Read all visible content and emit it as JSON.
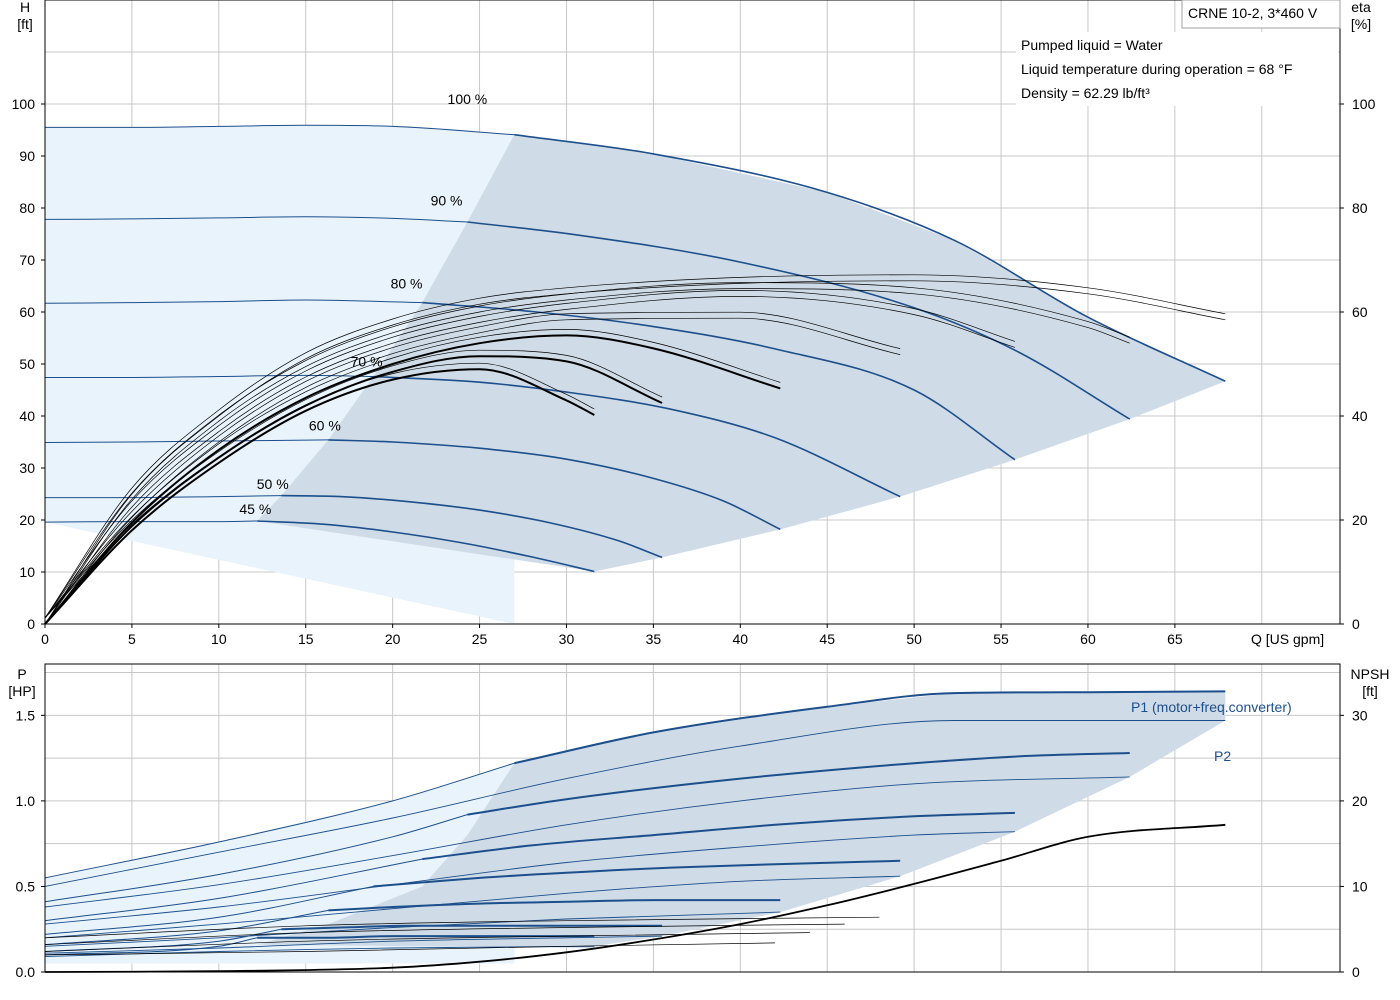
{
  "chart_data": [
    {
      "type": "line",
      "title": "CRNE 10-2, 3*460 V",
      "info_lines": [
        "Pumped liquid = Water",
        "Liquid temperature during operation = 68 °F",
        "Density = 62.29 lb/ft³"
      ],
      "xlabel": "Q [US gpm]",
      "ylabel_top": "H",
      "ylabel_bottom": "[ft]",
      "y2label_top": "eta",
      "y2label_bottom": "[%]",
      "xlim": [
        0,
        74.5
      ],
      "ylim": [
        0,
        120
      ],
      "y2lim": [
        0,
        120
      ],
      "x_ticks": [
        "0",
        "5",
        "10",
        "15",
        "20",
        "25",
        "30",
        "35",
        "40",
        "45",
        "50",
        "55",
        "60",
        "65"
      ],
      "y_ticks": [
        "0",
        "10",
        "20",
        "30",
        "40",
        "50",
        "60",
        "70",
        "80",
        "90",
        "100"
      ],
      "y2_ticks": [
        "0",
        "20",
        "40",
        "60",
        "80",
        "100"
      ],
      "grid": true,
      "colors": {
        "curve": "#1c4f8c",
        "operating_area": "#cfdbe7",
        "extended_area": "#e9f3fb",
        "efficiency": "#000000"
      },
      "head_series": [
        {
          "name": "100 %",
          "x": [
            0,
            5,
            10,
            15,
            20,
            27,
            35,
            45,
            52.3,
            60,
            67.9
          ],
          "y": [
            95.5,
            95.5,
            95.7,
            95.9,
            95.7,
            94.1,
            90.4,
            83,
            73.8,
            59,
            46.7
          ]
        },
        {
          "name": "90 %",
          "x": [
            0,
            5,
            10,
            15,
            20,
            24.3,
            30,
            40,
            50,
            56,
            62.4
          ],
          "y": [
            77.8,
            77.9,
            78.1,
            78.3,
            78,
            77.3,
            75.1,
            69.6,
            60.8,
            52.3,
            39.4
          ]
        },
        {
          "name": "80 %",
          "x": [
            0,
            5,
            10,
            15,
            21.7,
            28,
            35,
            42,
            50,
            55.8
          ],
          "y": [
            61.7,
            61.8,
            62,
            62.3,
            61.8,
            60.1,
            57.2,
            52.9,
            45,
            31.6
          ]
        },
        {
          "name": "70 %",
          "x": [
            0,
            5,
            10,
            15,
            18.9,
            25,
            30,
            36,
            42,
            49.2
          ],
          "y": [
            47.4,
            47.4,
            47.6,
            47.8,
            47.6,
            46.5,
            44.6,
            41.3,
            35.8,
            24.5
          ]
        },
        {
          "name": "60 %",
          "x": [
            0,
            5,
            10,
            16.3,
            20,
            25,
            30,
            35,
            39,
            42.3
          ],
          "y": [
            34.9,
            35,
            35.2,
            35.4,
            35,
            33.8,
            31.7,
            28,
            23.7,
            18.2
          ]
        },
        {
          "name": "50 %",
          "x": [
            0,
            5,
            10,
            13.6,
            17,
            21,
            25,
            29,
            33,
            35.5
          ],
          "y": [
            24.3,
            24.3,
            24.5,
            24.7,
            24.5,
            23.5,
            21.9,
            19.5,
            16,
            12.8
          ]
        },
        {
          "name": "45 %",
          "x": [
            0,
            5,
            10,
            12.2,
            16,
            20,
            24,
            28,
            31.6
          ],
          "y": [
            19.6,
            19.7,
            19.7,
            19.8,
            19.2,
            17.7,
            15.6,
            12.9,
            10.1
          ]
        }
      ],
      "efficiency_series": [
        {
          "name": "",
          "x": [
            0,
            5,
            10,
            15,
            20,
            25,
            30,
            40,
            50,
            60,
            67.9
          ],
          "y": [
            0,
            25,
            40,
            51,
            57.5,
            61.5,
            63.5,
            65.5,
            66,
            63.5,
            58.5
          ]
        },
        {
          "name": "",
          "x": [
            0,
            5,
            10,
            15,
            20,
            25,
            30,
            40,
            50,
            60,
            62.4
          ],
          "y": [
            0,
            24,
            39,
            49.5,
            56,
            60,
            62.3,
            64.5,
            63.5,
            57,
            54
          ]
        },
        {
          "name": "",
          "x": [
            0,
            5,
            10,
            15,
            20,
            25,
            30,
            40,
            50,
            55.8
          ],
          "y": [
            0,
            22.5,
            37,
            47.5,
            54,
            58,
            60.5,
            63,
            59.5,
            53.2
          ]
        },
        {
          "name": "",
          "x": [
            0,
            5,
            10,
            15,
            20,
            25,
            30,
            40,
            49.2
          ],
          "y": [
            0,
            20.5,
            35,
            45.5,
            52,
            56,
            58.5,
            58.8,
            51.8
          ]
        },
        {
          "name": "",
          "x": [
            0,
            5,
            10,
            15,
            20,
            25,
            30,
            35,
            42.3
          ],
          "y": [
            0,
            19.5,
            33.5,
            43.5,
            50,
            54,
            55.5,
            53,
            45.3
          ]
        },
        {
          "name": "",
          "x": [
            0,
            5,
            10,
            15,
            20,
            25,
            30,
            35.5
          ],
          "y": [
            0,
            18.8,
            32,
            42,
            48.5,
            51.5,
            50.5,
            42.5
          ]
        },
        {
          "name": "",
          "x": [
            0,
            5,
            10,
            15,
            20,
            25,
            30,
            31.6
          ],
          "y": [
            0,
            18,
            31,
            41,
            47,
            49,
            43,
            40.2
          ]
        }
      ]
    },
    {
      "type": "line",
      "xlabel": "",
      "ylabel_top": "P",
      "ylabel_bottom": "[HP]",
      "y2label_top": "NPSH",
      "y2label_bottom": "[ft]",
      "xlim": [
        0,
        74.5
      ],
      "ylim": [
        0,
        1.8
      ],
      "y2lim": [
        0,
        36
      ],
      "y_ticks": [
        "0.0",
        "0.5",
        "1.0",
        "1.5"
      ],
      "y2_ticks": [
        "0",
        "10",
        "20",
        "30"
      ],
      "grid": true,
      "labels": {
        "p1": "P1 (motor+freq.converter)",
        "p2": "P2"
      },
      "p1_series": [
        {
          "name": "100 %",
          "x": [
            0,
            10,
            20,
            27,
            35,
            45,
            52.3,
            60,
            67.9
          ],
          "y": [
            0.55,
            0.76,
            1.0,
            1.22,
            1.4,
            1.55,
            1.63,
            1.635,
            1.64
          ]
        },
        {
          "name": "90 %",
          "x": [
            0,
            10,
            20,
            24.3,
            30,
            40,
            50,
            56,
            62.4
          ],
          "y": [
            0.41,
            0.57,
            0.79,
            0.92,
            1.01,
            1.13,
            1.22,
            1.26,
            1.28
          ]
        },
        {
          "name": "80 %",
          "x": [
            0,
            10,
            21.7,
            28,
            35,
            42,
            50,
            55.8
          ],
          "y": [
            0.3,
            0.43,
            0.66,
            0.74,
            0.8,
            0.86,
            0.91,
            0.93
          ]
        },
        {
          "name": "70 %",
          "x": [
            0,
            10,
            18.9,
            25,
            30,
            36,
            42,
            49.2
          ],
          "y": [
            0.22,
            0.32,
            0.5,
            0.55,
            0.58,
            0.61,
            0.63,
            0.65
          ]
        },
        {
          "name": "60 %",
          "x": [
            0,
            10,
            16.3,
            20,
            25,
            30,
            35,
            42.3
          ],
          "y": [
            0.16,
            0.24,
            0.36,
            0.38,
            0.4,
            0.41,
            0.42,
            0.42
          ]
        },
        {
          "name": "50 %",
          "x": [
            0,
            10,
            13.6,
            17,
            21,
            25,
            29,
            35.5
          ],
          "y": [
            0.12,
            0.18,
            0.25,
            0.26,
            0.27,
            0.27,
            0.27,
            0.27
          ]
        },
        {
          "name": "45 %",
          "x": [
            0,
            10,
            12.2,
            16,
            20,
            24,
            28,
            31.6
          ],
          "y": [
            0.1,
            0.15,
            0.2,
            0.2,
            0.21,
            0.21,
            0.21,
            0.21
          ]
        }
      ],
      "p2_series": [
        {
          "name": "100 %",
          "x": [
            0,
            10,
            20,
            30,
            40,
            52.3,
            60,
            67.9
          ],
          "y": [
            0.5,
            0.7,
            0.9,
            1.13,
            1.32,
            1.47,
            1.47,
            1.47
          ]
        },
        {
          "name": "90 %",
          "x": [
            0,
            10,
            20,
            30,
            40,
            50,
            62.4
          ],
          "y": [
            0.38,
            0.51,
            0.68,
            0.86,
            1.0,
            1.1,
            1.14
          ]
        },
        {
          "name": "80 %",
          "x": [
            0,
            10,
            20,
            30,
            40,
            50,
            55.8
          ],
          "y": [
            0.28,
            0.38,
            0.51,
            0.64,
            0.73,
            0.8,
            0.82
          ]
        },
        {
          "name": "70 %",
          "x": [
            0,
            10,
            20,
            30,
            40,
            49.2
          ],
          "y": [
            0.2,
            0.28,
            0.37,
            0.46,
            0.53,
            0.56
          ]
        },
        {
          "name": "60 %",
          "x": [
            0,
            10,
            20,
            30,
            42.3
          ],
          "y": [
            0.15,
            0.2,
            0.26,
            0.31,
            0.35
          ]
        },
        {
          "name": "50 %",
          "x": [
            0,
            10,
            20,
            30,
            35.5
          ],
          "y": [
            0.11,
            0.14,
            0.18,
            0.2,
            0.21
          ]
        },
        {
          "name": "45 %",
          "x": [
            0,
            10,
            20,
            31.6
          ],
          "y": [
            0.09,
            0.12,
            0.14,
            0.15
          ]
        }
      ],
      "npsh_series": [
        {
          "name": "",
          "x": [
            0,
            10,
            20,
            25,
            30,
            35,
            40,
            45,
            50,
            55,
            60,
            67.9
          ],
          "y": [
            0,
            0.1,
            0.5,
            1.2,
            2.3,
            3.8,
            5.6,
            7.8,
            10.3,
            13,
            15.8,
            17.2
          ]
        }
      ]
    }
  ]
}
